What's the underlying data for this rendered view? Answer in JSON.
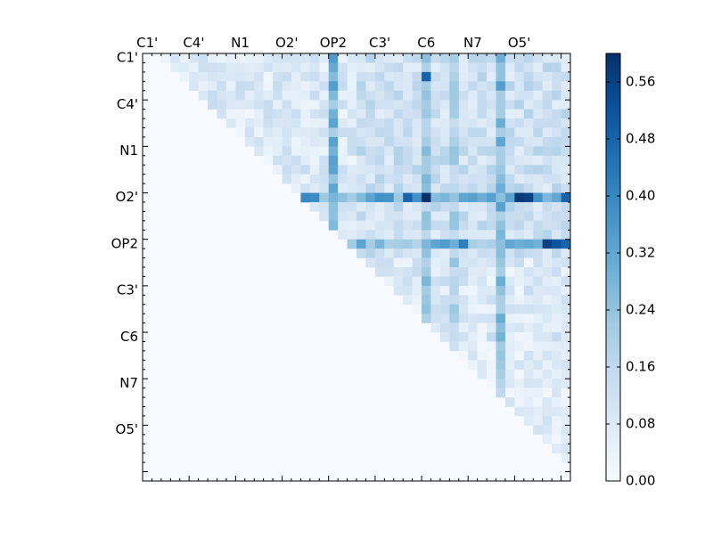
{
  "chart_data": {
    "type": "heatmap",
    "title": "",
    "xlabel": "",
    "ylabel": "",
    "x_tick_labels": [
      "C1'",
      "C4'",
      "N1",
      "O2'",
      "OP2",
      "C3'",
      "C6",
      "N7",
      "O5'"
    ],
    "y_tick_labels": [
      "C1'",
      "C4'",
      "N1",
      "O2'",
      "OP2",
      "C3'",
      "C6",
      "N7",
      "O5'"
    ],
    "matrix_size": 46,
    "tick_every": 5,
    "colorbar": {
      "min": 0.0,
      "max": 0.6,
      "ticks": [
        "0.00",
        "0.08",
        "0.16",
        "0.24",
        "0.32",
        "0.40",
        "0.48",
        "0.56"
      ],
      "colormap": "Blues",
      "color_low": "#f7fbff",
      "color_high": "#08306b"
    },
    "bands": [
      {
        "axis": "col",
        "index": 20,
        "value": 0.35
      },
      {
        "axis": "col",
        "index": 30,
        "value": 0.28
      },
      {
        "axis": "col",
        "index": 33,
        "value": 0.24
      },
      {
        "axis": "col",
        "index": 38,
        "value": 0.35
      },
      {
        "axis": "row",
        "index": 15,
        "value": 0.4
      },
      {
        "axis": "row",
        "index": 20,
        "value": 0.35
      }
    ],
    "peaks": [
      {
        "row": 15,
        "col": 30,
        "value": 0.6
      },
      {
        "row": 15,
        "col": 40,
        "value": 0.58
      },
      {
        "row": 15,
        "col": 41,
        "value": 0.56
      },
      {
        "row": 15,
        "col": 28,
        "value": 0.48
      },
      {
        "row": 15,
        "col": 45,
        "value": 0.48
      },
      {
        "row": 20,
        "col": 43,
        "value": 0.56
      },
      {
        "row": 20,
        "col": 44,
        "value": 0.52
      },
      {
        "row": 20,
        "col": 45,
        "value": 0.48
      },
      {
        "row": 20,
        "col": 34,
        "value": 0.42
      },
      {
        "row": 2,
        "col": 30,
        "value": 0.48
      },
      {
        "row": 0,
        "col": 20,
        "value": 0.35
      }
    ]
  }
}
